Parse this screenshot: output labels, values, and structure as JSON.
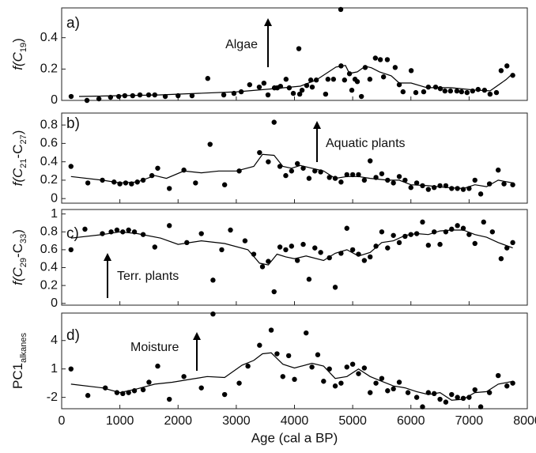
{
  "chart_data": [
    {
      "type": "scatter",
      "panel_label": "a)",
      "annotation": "Algae",
      "ylabel": [
        "f(C",
        "19",
        ")"
      ],
      "xlim": [
        0,
        8000
      ],
      "ylim": [
        0,
        0.59
      ],
      "yticks": [
        0,
        0.2,
        0.4
      ],
      "series": [
        {
          "type": "scatter",
          "color": "#000000",
          "x": [
            163,
            435,
            640,
            840,
            980,
            1085,
            1220,
            1345,
            1495,
            1600,
            1780,
            2000,
            2240,
            2510,
            2785,
            2960,
            3085,
            3230,
            3395,
            3475,
            3545,
            3655,
            3705,
            3760,
            3855,
            3910,
            3980,
            4075,
            4090,
            4130,
            4210,
            4280,
            4305,
            4375,
            4535,
            4575,
            4670,
            4795,
            4800,
            4860,
            4945,
            4985,
            5040,
            5080,
            5150,
            5215,
            5295,
            5390,
            5475,
            5530,
            5595,
            5730,
            5800,
            5865,
            6005,
            6085,
            6220,
            6300,
            6425,
            6505,
            6585,
            6680,
            6790,
            6870,
            6965,
            7060,
            7155,
            7265,
            7360,
            7470,
            7550,
            7650,
            7750
          ],
          "values": [
            0.025,
            0,
            0.01,
            0.02,
            0.025,
            0.03,
            0.03,
            0.035,
            0.035,
            0.035,
            0.025,
            0.03,
            0.03,
            0.14,
            0.035,
            0.045,
            0.055,
            0.1,
            0.085,
            0.11,
            0.035,
            0.08,
            0.08,
            0.09,
            0.135,
            0.08,
            0.045,
            0.33,
            0.04,
            0.065,
            0.095,
            0.13,
            0.085,
            0.13,
            0.04,
            0.135,
            0.135,
            0.58,
            0.22,
            0.13,
            0.17,
            0.065,
            0.135,
            0.12,
            0.025,
            0.21,
            0.135,
            0.27,
            0.26,
            0.15,
            0.26,
            0.21,
            0.1,
            0.055,
            0.19,
            0.05,
            0.055,
            0.085,
            0.085,
            0.075,
            0.06,
            0.06,
            0.06,
            0.055,
            0.05,
            0.06,
            0.07,
            0.065,
            0.04,
            0.05,
            0.19,
            0.22,
            0.16
          ]
        },
        {
          "type": "line",
          "color": "#000000",
          "x": [
            299,
            1657,
            3015,
            3694,
            4101,
            4373,
            4713,
            4876,
            4944,
            5080,
            5215,
            5324,
            5460,
            5663,
            5799,
            6003,
            6275,
            6682,
            7090,
            7361,
            7633,
            7750
          ],
          "values": [
            0.025,
            0.035,
            0.055,
            0.076,
            0.091,
            0.13,
            0.213,
            0.223,
            0.172,
            0.182,
            0.218,
            0.208,
            0.182,
            0.157,
            0.111,
            0.111,
            0.081,
            0.081,
            0.066,
            0.061,
            0.132,
            0.172
          ]
        }
      ]
    },
    {
      "type": "scatter",
      "panel_label": "b)",
      "annotation": "Aquatic plants",
      "ylabel": [
        "f(C",
        "21",
        "-C",
        "27",
        ")"
      ],
      "xlim": [
        0,
        8000
      ],
      "ylim": [
        -0.05,
        0.93
      ],
      "yticks": [
        0,
        0.2,
        0.4,
        0.6,
        0.8
      ],
      "series": [
        {
          "type": "scatter",
          "color": "#000000",
          "x": [
            160,
            450,
            700,
            900,
            1000,
            1100,
            1200,
            1300,
            1400,
            1550,
            1650,
            1850,
            2100,
            2300,
            2550,
            2800,
            3050,
            3400,
            3550,
            3650,
            3750,
            3850,
            3950,
            4050,
            4150,
            4250,
            4350,
            4450,
            4600,
            4700,
            4800,
            4900,
            5000,
            5100,
            5200,
            5300,
            5400,
            5500,
            5600,
            5700,
            5800,
            5900,
            6000,
            6100,
            6200,
            6300,
            6400,
            6500,
            6600,
            6700,
            6800,
            6900,
            7000,
            7100,
            7200,
            7350,
            7500,
            7600,
            7750
          ],
          "values": [
            0.35,
            0.17,
            0.2,
            0.18,
            0.16,
            0.17,
            0.16,
            0.18,
            0.2,
            0.25,
            0.33,
            0.11,
            0.31,
            0.17,
            0.59,
            0.15,
            0.3,
            0.5,
            0.4,
            0.83,
            0.35,
            0.25,
            0.3,
            0.38,
            0.33,
            0.22,
            0.3,
            0.29,
            0.23,
            0.22,
            0.18,
            0.26,
            0.26,
            0.26,
            0.2,
            0.41,
            0.23,
            0.27,
            0.2,
            0.17,
            0.24,
            0.2,
            0.12,
            0.17,
            0.14,
            0.1,
            0.12,
            0.14,
            0.14,
            0.11,
            0.11,
            0.1,
            0.11,
            0.2,
            0.05,
            0.16,
            0.31,
            0.16,
            0.15
          ]
        },
        {
          "type": "line",
          "color": "#000000",
          "x": [
            160,
            700,
            1000,
            1300,
            1600,
            1800,
            2100,
            2400,
            2700,
            3000,
            3300,
            3450,
            3650,
            3800,
            3950,
            4100,
            4300,
            4500,
            4700,
            4900,
            5100,
            5300,
            5600,
            5800,
            6000,
            6300,
            6600,
            6900,
            7100,
            7300,
            7500,
            7750
          ],
          "values": [
            0.24,
            0.2,
            0.17,
            0.18,
            0.25,
            0.22,
            0.3,
            0.28,
            0.3,
            0.3,
            0.35,
            0.48,
            0.47,
            0.35,
            0.33,
            0.36,
            0.33,
            0.3,
            0.22,
            0.24,
            0.24,
            0.22,
            0.2,
            0.2,
            0.15,
            0.14,
            0.12,
            0.11,
            0.15,
            0.13,
            0.2,
            0.17
          ]
        }
      ]
    },
    {
      "type": "scatter",
      "panel_label": "c)",
      "annotation": "Terr. plants",
      "ylabel": [
        "f(C",
        "29",
        "-C",
        "33",
        ")"
      ],
      "xlim": [
        0,
        8000
      ],
      "ylim": [
        -0.02,
        1.05
      ],
      "yticks": [
        0,
        0.2,
        0.4,
        0.6,
        0.8,
        1
      ],
      "series": [
        {
          "type": "scatter",
          "color": "#000000",
          "x": [
            160,
            400,
            700,
            850,
            950,
            1050,
            1150,
            1250,
            1400,
            1600,
            1850,
            2150,
            2400,
            2600,
            2750,
            2900,
            3150,
            3300,
            3450,
            3550,
            3650,
            3750,
            3850,
            3950,
            4050,
            4150,
            4250,
            4350,
            4450,
            4600,
            4700,
            4800,
            4900,
            5000,
            5100,
            5200,
            5300,
            5400,
            5500,
            5600,
            5700,
            5800,
            5900,
            6000,
            6100,
            6200,
            6300,
            6400,
            6500,
            6600,
            6700,
            6800,
            6900,
            7000,
            7100,
            7250,
            7400,
            7550,
            7650,
            7750
          ],
          "values": [
            0.6,
            0.83,
            0.78,
            0.8,
            0.82,
            0.8,
            0.82,
            0.8,
            0.77,
            0.63,
            0.87,
            0.68,
            0.78,
            0.26,
            0.6,
            0.82,
            0.7,
            0.55,
            0.41,
            0.47,
            0.13,
            0.63,
            0.6,
            0.64,
            0.48,
            0.66,
            0.27,
            0.62,
            0.57,
            0.51,
            0.18,
            0.56,
            0.84,
            0.6,
            0.55,
            0.48,
            0.52,
            0.64,
            0.8,
            0.62,
            0.76,
            0.68,
            0.75,
            0.77,
            0.78,
            0.91,
            0.65,
            0.8,
            0.66,
            0.8,
            0.83,
            0.87,
            0.84,
            0.77,
            0.67,
            0.91,
            0.8,
            0.5,
            0.62,
            0.68
          ]
        },
        {
          "type": "line",
          "color": "#000000",
          "x": [
            160,
            700,
            1000,
            1300,
            1700,
            2000,
            2400,
            2800,
            3200,
            3400,
            3550,
            3700,
            3850,
            4000,
            4200,
            4500,
            4700,
            4900,
            5100,
            5300,
            5500,
            5700,
            5900,
            6100,
            6300,
            6500,
            6700,
            6900,
            7100,
            7300,
            7500,
            7750
          ],
          "values": [
            0.73,
            0.77,
            0.8,
            0.78,
            0.73,
            0.66,
            0.7,
            0.67,
            0.6,
            0.45,
            0.43,
            0.55,
            0.52,
            0.5,
            0.53,
            0.48,
            0.56,
            0.6,
            0.53,
            0.57,
            0.68,
            0.7,
            0.76,
            0.78,
            0.77,
            0.81,
            0.82,
            0.82,
            0.77,
            0.74,
            0.68,
            0.62
          ]
        }
      ]
    },
    {
      "type": "scatter",
      "panel_label": "d)",
      "annotation": "Moisture",
      "ylabel": [
        "PC1",
        "alkanes"
      ],
      "xlabel": "Age (cal a BP)",
      "xlim": [
        0,
        8000
      ],
      "xticks": [
        0,
        1000,
        2000,
        3000,
        4000,
        5000,
        6000,
        7000,
        8000
      ],
      "ylim": [
        -3.2,
        6.9
      ],
      "yticks": [
        -2,
        1,
        4
      ],
      "series": [
        {
          "type": "scatter",
          "color": "#000000",
          "x": [
            160,
            450,
            750,
            950,
            1050,
            1150,
            1250,
            1400,
            1500,
            1650,
            1850,
            2100,
            2400,
            2600,
            2800,
            3050,
            3200,
            3400,
            3600,
            3700,
            3800,
            3900,
            4000,
            4200,
            4300,
            4400,
            4500,
            4600,
            4700,
            4800,
            4900,
            5000,
            5100,
            5200,
            5300,
            5400,
            5500,
            5600,
            5700,
            5800,
            5950,
            6100,
            6200,
            6300,
            6400,
            6500,
            6600,
            6700,
            6800,
            6900,
            7000,
            7100,
            7200,
            7350,
            7500,
            7650,
            7750
          ],
          "values": [
            1,
            -1.8,
            -1,
            -1.5,
            -1.6,
            -1.5,
            -1.3,
            -1.2,
            -0.4,
            1.3,
            -2.2,
            0.2,
            -1,
            6.8,
            -1.7,
            -0.5,
            1.3,
            3.5,
            5.1,
            2.6,
            0.2,
            2.4,
            -0.1,
            4.8,
            1.2,
            2.5,
            -0.3,
            1,
            -0.8,
            -0.5,
            1.2,
            1.5,
            0.5,
            1.1,
            -1.5,
            -0.5,
            0,
            -1.3,
            -1.1,
            -0.4,
            -1.5,
            -2,
            -3,
            -1.5,
            -1.6,
            -2.2,
            -2.5,
            -1.7,
            -2,
            -2.1,
            -2,
            -1.2,
            -3,
            -1.5,
            0.3,
            -0.8,
            -0.5
          ]
        },
        {
          "type": "line",
          "color": "#000000",
          "x": [
            160,
            700,
            1000,
            1300,
            1600,
            1900,
            2200,
            2500,
            2800,
            3100,
            3300,
            3450,
            3600,
            3800,
            4000,
            4300,
            4500,
            4700,
            4900,
            5100,
            5300,
            5500,
            5700,
            5900,
            6100,
            6300,
            6500,
            6700,
            6900,
            7100,
            7300,
            7500,
            7750
          ],
          "values": [
            -0.6,
            -1,
            -1.5,
            -1.1,
            -0.6,
            -0.4,
            -0.1,
            0.2,
            0.1,
            1.4,
            1.9,
            2.6,
            2.7,
            1.5,
            1.1,
            1.6,
            1.3,
            0,
            0.2,
            1,
            0.2,
            -0.3,
            -0.8,
            -1,
            -1.4,
            -1.7,
            -1.5,
            -2.3,
            -2.2,
            -1.5,
            -1.4,
            -0.6,
            -0.3
          ]
        }
      ]
    }
  ]
}
